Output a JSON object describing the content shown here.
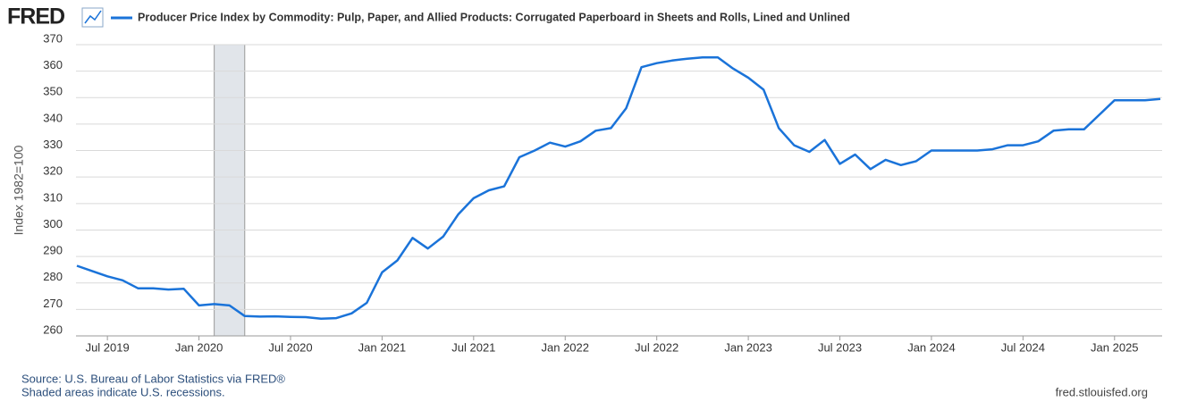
{
  "logo": "FRED",
  "chart_data": {
    "type": "line",
    "ylabel": "Index 1982=100",
    "x": [
      "2019-05",
      "2019-06",
      "2019-07",
      "2019-08",
      "2019-09",
      "2019-10",
      "2019-11",
      "2019-12",
      "2020-01",
      "2020-02",
      "2020-03",
      "2020-04",
      "2020-05",
      "2020-06",
      "2020-07",
      "2020-08",
      "2020-09",
      "2020-10",
      "2020-11",
      "2020-12",
      "2021-01",
      "2021-02",
      "2021-03",
      "2021-04",
      "2021-05",
      "2021-06",
      "2021-07",
      "2021-08",
      "2021-09",
      "2021-10",
      "2021-11",
      "2021-12",
      "2022-01",
      "2022-02",
      "2022-03",
      "2022-04",
      "2022-05",
      "2022-06",
      "2022-07",
      "2022-08",
      "2022-09",
      "2022-10",
      "2022-11",
      "2022-12",
      "2023-01",
      "2023-02",
      "2023-03",
      "2023-04",
      "2023-05",
      "2023-06",
      "2023-07",
      "2023-08",
      "2023-09",
      "2023-10",
      "2023-11",
      "2023-12",
      "2024-01",
      "2024-02",
      "2024-03",
      "2024-04",
      "2024-05",
      "2024-06",
      "2024-07",
      "2024-08",
      "2024-09",
      "2024-10",
      "2024-11",
      "2024-12",
      "2025-01",
      "2025-02",
      "2025-03",
      "2025-04"
    ],
    "series": [
      {
        "name": "Producer Price Index by Commodity: Pulp, Paper, and Allied Products: Corrugated Paperboard in Sheets and Rolls, Lined and Unlined",
        "color": "#1a73d9",
        "values": [
          286.5,
          284.5,
          282.5,
          281,
          278,
          278,
          277.5,
          277.8,
          271.5,
          272,
          271.5,
          267.5,
          267.3,
          267.4,
          267.2,
          267.1,
          266.5,
          266.7,
          268.5,
          272.5,
          284,
          288.5,
          297,
          293,
          297.5,
          306,
          312,
          315,
          316.5,
          327.5,
          330,
          333,
          331.5,
          333.5,
          337.5,
          338.5,
          346,
          361.5,
          363,
          364,
          364.7,
          365.2,
          365.2,
          361,
          357.5,
          353,
          338.5,
          332,
          329.5,
          334,
          325,
          328.5,
          323,
          326.5,
          324.5,
          326,
          330,
          330,
          330,
          330,
          330.5,
          332,
          332,
          333.5,
          337.5,
          338,
          338,
          343.5,
          349,
          349,
          349,
          349.5
        ]
      }
    ],
    "xlim": [
      "2019-05",
      "2025-04"
    ],
    "xticks": [
      {
        "value": "2019-07",
        "label": "Jul 2019"
      },
      {
        "value": "2020-01",
        "label": "Jan 2020"
      },
      {
        "value": "2020-07",
        "label": "Jul 2020"
      },
      {
        "value": "2021-01",
        "label": "Jan 2021"
      },
      {
        "value": "2021-07",
        "label": "Jul 2021"
      },
      {
        "value": "2022-01",
        "label": "Jan 2022"
      },
      {
        "value": "2022-07",
        "label": "Jul 2022"
      },
      {
        "value": "2023-01",
        "label": "Jan 2023"
      },
      {
        "value": "2023-07",
        "label": "Jul 2023"
      },
      {
        "value": "2024-01",
        "label": "Jan 2024"
      },
      {
        "value": "2024-07",
        "label": "Jul 2024"
      },
      {
        "value": "2025-01",
        "label": "Jan 2025"
      }
    ],
    "ylim": [
      260,
      370
    ],
    "yticks": [
      260,
      270,
      280,
      290,
      300,
      310,
      320,
      330,
      340,
      350,
      360,
      370
    ],
    "recessions": [
      [
        "2020-02",
        "2020-04"
      ]
    ],
    "grid": true
  },
  "footer": {
    "source": "Source: U.S. Bureau of Labor Statistics via FRED®",
    "note": "Shaded areas indicate U.S. recessions.",
    "url": "fred.stlouisfed.org"
  }
}
